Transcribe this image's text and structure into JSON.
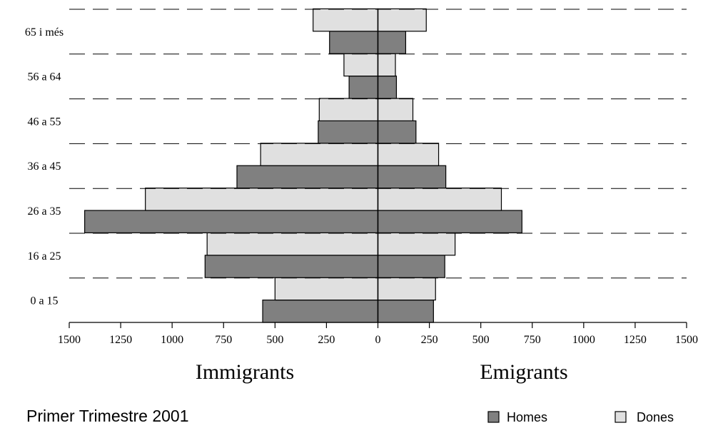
{
  "chart_data": {
    "type": "bar",
    "orientation": "horizontal",
    "layout": "population-pyramid",
    "title": "Primer Trimestre 2001",
    "left_label": "Immigrants",
    "right_label": "Emigrants",
    "categories": [
      "0 a 15",
      "16 a 25",
      "26 a 35",
      "36 a 45",
      "46 a 55",
      "56 a 64",
      "65 i més"
    ],
    "xlim": [
      -1500,
      1500
    ],
    "x_ticks": [
      -1500,
      -1250,
      -1000,
      -750,
      -500,
      -250,
      0,
      250,
      500,
      750,
      1000,
      1250,
      1500
    ],
    "x_tick_labels": [
      "1500",
      "1250",
      "1000",
      "750",
      "500",
      "250",
      "0",
      "250",
      "500",
      "750",
      "1000",
      "1250",
      "1500"
    ],
    "series": [
      {
        "name": "Homes",
        "color": "#808080",
        "immigrants": [
          560,
          840,
          1425,
          685,
          290,
          140,
          235
        ],
        "emigrants": [
          270,
          325,
          700,
          330,
          185,
          90,
          135
        ]
      },
      {
        "name": "Dones",
        "color": "#e0e0e0",
        "immigrants": [
          500,
          830,
          1130,
          570,
          285,
          165,
          315
        ],
        "emigrants": [
          280,
          375,
          600,
          295,
          170,
          85,
          235
        ]
      }
    ],
    "grid": "dashed horizontal separators",
    "legend_position": "bottom-right"
  }
}
